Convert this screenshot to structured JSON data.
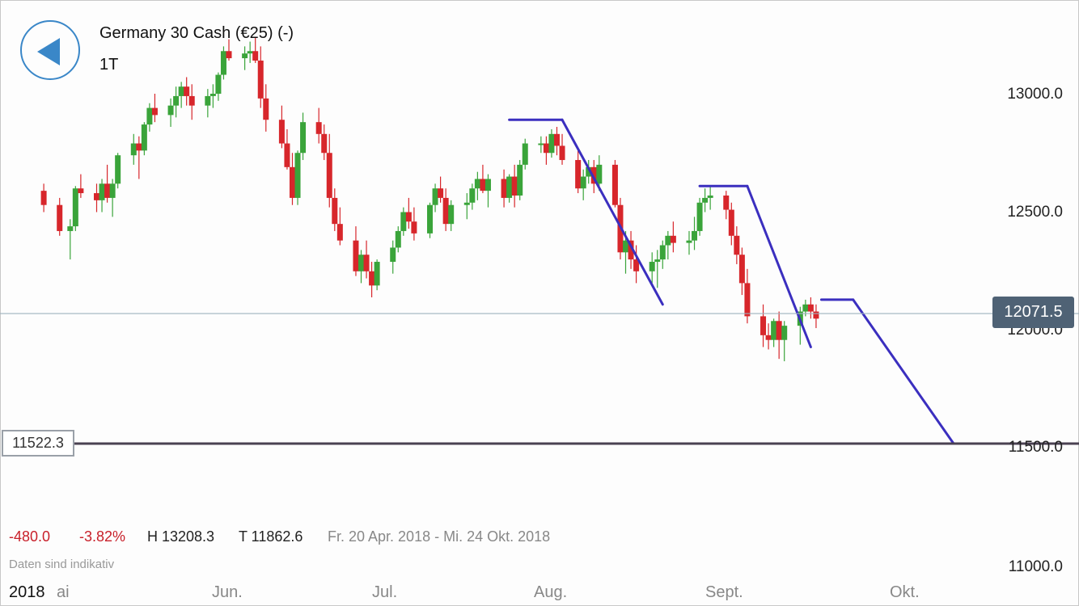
{
  "header": {
    "title": "Germany 30 Cash (€25) (-)",
    "interval": "1T"
  },
  "current_price_label": "12071.5",
  "level_label": "11522.3",
  "stats": {
    "change": "-480.0",
    "change_pct": "-3.82%",
    "high": "H 13208.3",
    "low": "T 11862.6",
    "range": "Fr. 20 Apr. 2018 - Mi. 24 Okt. 2018"
  },
  "disclaimer": "Daten sind indikativ",
  "x_axis": {
    "year": "2018",
    "suffix": "ai",
    "months": [
      "Jun.",
      "Jul.",
      "Aug.",
      "Sept.",
      "Okt."
    ]
  },
  "y_axis": {
    "ticks": [
      "13000.0",
      "12500.0",
      "12000.0",
      "11500.0",
      "11000.0"
    ]
  },
  "colors": {
    "up": "#3aa43a",
    "down": "#d7262b",
    "drawing": "#3b2fbf",
    "level_line": "#4a4152",
    "price_line": "#9fb3bf",
    "price_tag_bg": "#4f6275",
    "back_button": "#3a87c8"
  },
  "icons": {
    "back": "back-arrow-icon"
  },
  "chart_data": {
    "type": "candlestick",
    "instrument": "Germany 30 Cash (€25) (-)",
    "ylim": [
      11000,
      13250
    ],
    "yticks": [
      13000,
      12500,
      12000,
      11500,
      11000
    ],
    "current_price": 12071.5,
    "horizontal_level": 11522.3,
    "dates": [
      "2018-04-27",
      "2018-04-30",
      "2018-05-02",
      "2018-05-03",
      "2018-05-04",
      "2018-05-07",
      "2018-05-08",
      "2018-05-09",
      "2018-05-10",
      "2018-05-11",
      "2018-05-14",
      "2018-05-15",
      "2018-05-16",
      "2018-05-17",
      "2018-05-18",
      "2018-05-21",
      "2018-05-22",
      "2018-05-23",
      "2018-05-24",
      "2018-05-25",
      "2018-05-28",
      "2018-05-29",
      "2018-05-30",
      "2018-05-31",
      "2018-06-01",
      "2018-06-04",
      "2018-06-05",
      "2018-06-06",
      "2018-06-07",
      "2018-06-08",
      "2018-06-11",
      "2018-06-12",
      "2018-06-13",
      "2018-06-14",
      "2018-06-15",
      "2018-06-18",
      "2018-06-19",
      "2018-06-20",
      "2018-06-21",
      "2018-06-22",
      "2018-06-25",
      "2018-06-26",
      "2018-06-27",
      "2018-06-28",
      "2018-06-29",
      "2018-07-02",
      "2018-07-03",
      "2018-07-04",
      "2018-07-05",
      "2018-07-06",
      "2018-07-09",
      "2018-07-10",
      "2018-07-11",
      "2018-07-12",
      "2018-07-13",
      "2018-07-16",
      "2018-07-17",
      "2018-07-18",
      "2018-07-19",
      "2018-07-20",
      "2018-07-23",
      "2018-07-24",
      "2018-07-25",
      "2018-07-26",
      "2018-07-27",
      "2018-07-30",
      "2018-07-31",
      "2018-08-01",
      "2018-08-02",
      "2018-08-03",
      "2018-08-06",
      "2018-08-07",
      "2018-08-08",
      "2018-08-09",
      "2018-08-10",
      "2018-08-13",
      "2018-08-14",
      "2018-08-15",
      "2018-08-16",
      "2018-08-17",
      "2018-08-20",
      "2018-08-21",
      "2018-08-22",
      "2018-08-23",
      "2018-08-24",
      "2018-08-27",
      "2018-08-28",
      "2018-08-29",
      "2018-08-30",
      "2018-08-31",
      "2018-09-03",
      "2018-09-04",
      "2018-09-05",
      "2018-09-06",
      "2018-09-07",
      "2018-09-10",
      "2018-09-11",
      "2018-09-12",
      "2018-09-13",
      "2018-09-14",
      "2018-09-17",
      "2018-09-18",
      "2018-09-19",
      "2018-09-20"
    ],
    "ohlc": [
      [
        12590,
        12620,
        12500,
        12530
      ],
      [
        12530,
        12560,
        12400,
        12420
      ],
      [
        12420,
        12470,
        12300,
        12440
      ],
      [
        12440,
        12610,
        12420,
        12600
      ],
      [
        12600,
        12660,
        12560,
        12580
      ],
      [
        12580,
        12620,
        12500,
        12550
      ],
      [
        12550,
        12640,
        12500,
        12620
      ],
      [
        12620,
        12700,
        12540,
        12560
      ],
      [
        12560,
        12640,
        12480,
        12620
      ],
      [
        12620,
        12750,
        12600,
        12740
      ],
      [
        12740,
        12830,
        12700,
        12790
      ],
      [
        12790,
        12820,
        12640,
        12760
      ],
      [
        12760,
        12880,
        12740,
        12870
      ],
      [
        12870,
        12960,
        12840,
        12940
      ],
      [
        12940,
        13000,
        12880,
        12910
      ],
      [
        12910,
        12980,
        12860,
        12950
      ],
      [
        12950,
        13030,
        12900,
        12990
      ],
      [
        12990,
        13050,
        12940,
        13030
      ],
      [
        13030,
        13070,
        12950,
        12990
      ],
      [
        12990,
        13040,
        12890,
        12950
      ],
      [
        12950,
        13020,
        12900,
        12990
      ],
      [
        12990,
        13040,
        12940,
        13000
      ],
      [
        13000,
        13090,
        12970,
        13080
      ],
      [
        13080,
        13200,
        13060,
        13180
      ],
      [
        13180,
        13230,
        13140,
        13150
      ],
      [
        13150,
        13200,
        13100,
        13170
      ],
      [
        13170,
        13220,
        13130,
        13180
      ],
      [
        13180,
        13240,
        13130,
        13140
      ],
      [
        13140,
        13200,
        12940,
        12980
      ],
      [
        12980,
        13040,
        12840,
        12890
      ],
      [
        12890,
        12950,
        12770,
        12790
      ],
      [
        12790,
        12850,
        12680,
        12690
      ],
      [
        12690,
        12750,
        12530,
        12560
      ],
      [
        12560,
        12760,
        12530,
        12750
      ],
      [
        12750,
        12920,
        12720,
        12880
      ],
      [
        12880,
        12940,
        12790,
        12830
      ],
      [
        12830,
        12870,
        12720,
        12750
      ],
      [
        12750,
        12830,
        12520,
        12560
      ],
      [
        12560,
        12600,
        12420,
        12450
      ],
      [
        12450,
        12520,
        12360,
        12380
      ],
      [
        12380,
        12440,
        12230,
        12250
      ],
      [
        12250,
        12340,
        12200,
        12320
      ],
      [
        12320,
        12380,
        12220,
        12250
      ],
      [
        12250,
        12290,
        12140,
        12190
      ],
      [
        12190,
        12300,
        12170,
        12290
      ],
      [
        12290,
        12380,
        12240,
        12350
      ],
      [
        12350,
        12440,
        12330,
        12420
      ],
      [
        12420,
        12520,
        12400,
        12500
      ],
      [
        12500,
        12560,
        12430,
        12460
      ],
      [
        12460,
        12520,
        12380,
        12410
      ],
      [
        12410,
        12540,
        12390,
        12530
      ],
      [
        12530,
        12620,
        12500,
        12600
      ],
      [
        12600,
        12650,
        12540,
        12560
      ],
      [
        12560,
        12600,
        12420,
        12450
      ],
      [
        12450,
        12550,
        12420,
        12530
      ],
      [
        12530,
        12580,
        12470,
        12540
      ],
      [
        12540,
        12620,
        12510,
        12600
      ],
      [
        12600,
        12670,
        12550,
        12640
      ],
      [
        12640,
        12700,
        12580,
        12590
      ],
      [
        12590,
        12660,
        12520,
        12640
      ],
      [
        12640,
        12680,
        12520,
        12560
      ],
      [
        12560,
        12660,
        12540,
        12650
      ],
      [
        12650,
        12700,
        12520,
        12570
      ],
      [
        12570,
        12720,
        12550,
        12700
      ],
      [
        12700,
        12810,
        12680,
        12790
      ],
      [
        12790,
        12820,
        12750,
        12790
      ],
      [
        12790,
        12820,
        12700,
        12750
      ],
      [
        12750,
        12850,
        12730,
        12830
      ],
      [
        12830,
        12860,
        12740,
        12780
      ],
      [
        12780,
        12830,
        12700,
        12720
      ],
      [
        12720,
        12760,
        12580,
        12600
      ],
      [
        12600,
        12680,
        12550,
        12650
      ],
      [
        12650,
        12720,
        12620,
        12690
      ],
      [
        12690,
        12720,
        12580,
        12620
      ],
      [
        12620,
        12740,
        12590,
        12700
      ],
      [
        12700,
        12720,
        12520,
        12530
      ],
      [
        12530,
        12560,
        12300,
        12330
      ],
      [
        12330,
        12420,
        12240,
        12380
      ],
      [
        12380,
        12420,
        12260,
        12300
      ],
      [
        12300,
        12360,
        12200,
        12250
      ],
      [
        12250,
        12330,
        12200,
        12290
      ],
      [
        12290,
        12340,
        12180,
        12300
      ],
      [
        12300,
        12380,
        12260,
        12360
      ],
      [
        12360,
        12420,
        12300,
        12400
      ],
      [
        12400,
        12460,
        12330,
        12370
      ],
      [
        12370,
        12420,
        12320,
        12380
      ],
      [
        12380,
        12480,
        12340,
        12420
      ],
      [
        12420,
        12560,
        12400,
        12540
      ],
      [
        12540,
        12600,
        12500,
        12560
      ],
      [
        12560,
        12610,
        12510,
        12570
      ],
      [
        12570,
        12590,
        12470,
        12510
      ],
      [
        12510,
        12540,
        12360,
        12400
      ],
      [
        12400,
        12440,
        12280,
        12320
      ],
      [
        12320,
        12350,
        12150,
        12200
      ],
      [
        12200,
        12260,
        12030,
        12060
      ],
      [
        12060,
        12110,
        11930,
        11980
      ],
      [
        11980,
        12030,
        11920,
        11960
      ],
      [
        11960,
        12050,
        11930,
        12040
      ],
      [
        12040,
        12080,
        11880,
        11960
      ],
      [
        11960,
        12040,
        11870,
        12020
      ],
      [
        12020,
        12100,
        11940,
        12080
      ],
      [
        12080,
        12130,
        12060,
        12110
      ],
      [
        12110,
        12140,
        12050,
        12080
      ],
      [
        12080,
        12110,
        12010,
        12050
      ]
    ],
    "drawings": [
      {
        "type": "horizontal",
        "y": 12890,
        "x_from": "2018-07-24",
        "x_to": "2018-08-03"
      },
      {
        "type": "trend",
        "from": [
          "2018-08-03",
          12890
        ],
        "to": [
          "2018-08-22",
          12110
        ]
      },
      {
        "type": "horizontal",
        "y": 12610,
        "x_from": "2018-08-29",
        "x_to": "2018-09-07"
      },
      {
        "type": "trend",
        "from": [
          "2018-09-07",
          12610
        ],
        "to": [
          "2018-09-19",
          11930
        ]
      },
      {
        "type": "horizontal",
        "y": 12130,
        "x_from": "2018-09-21",
        "x_to": "2018-09-27"
      },
      {
        "type": "trend",
        "from": [
          "2018-09-27",
          12130
        ],
        "to": [
          "2018-10-16",
          11522.3
        ]
      }
    ],
    "x_tick_labels": [
      "Jun.",
      "Jul.",
      "Aug.",
      "Sept.",
      "Okt."
    ]
  }
}
